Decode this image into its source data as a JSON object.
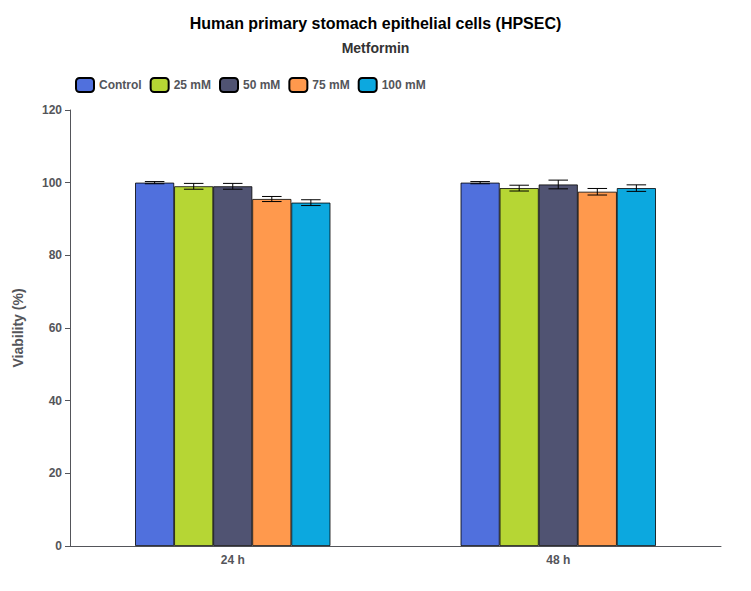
{
  "chart_data": {
    "type": "bar",
    "title": "Human primary stomach epithelial cells (HPSEC)",
    "subtitle": "Metformin",
    "ylabel": "Viability (%)",
    "categories": [
      "24 h",
      "48 h"
    ],
    "series": [
      {
        "name": "Control",
        "values": [
          100.0,
          100.0
        ],
        "errors": [
          0.3,
          0.3
        ]
      },
      {
        "name": "25 mM",
        "values": [
          99.0,
          98.5
        ],
        "errors": [
          0.8,
          0.8
        ]
      },
      {
        "name": "50 mM",
        "values": [
          99.0,
          99.5
        ],
        "errors": [
          0.8,
          1.2
        ]
      },
      {
        "name": "75 mM",
        "values": [
          95.5,
          97.5
        ],
        "errors": [
          0.7,
          0.9
        ]
      },
      {
        "name": "100 mM",
        "values": [
          94.5,
          98.5
        ],
        "errors": [
          0.8,
          0.9
        ]
      }
    ],
    "ylim": [
      0,
      120
    ],
    "yticks": [
      0,
      20,
      40,
      60,
      80,
      100,
      120
    ],
    "grid": false,
    "legend": "upper left"
  }
}
